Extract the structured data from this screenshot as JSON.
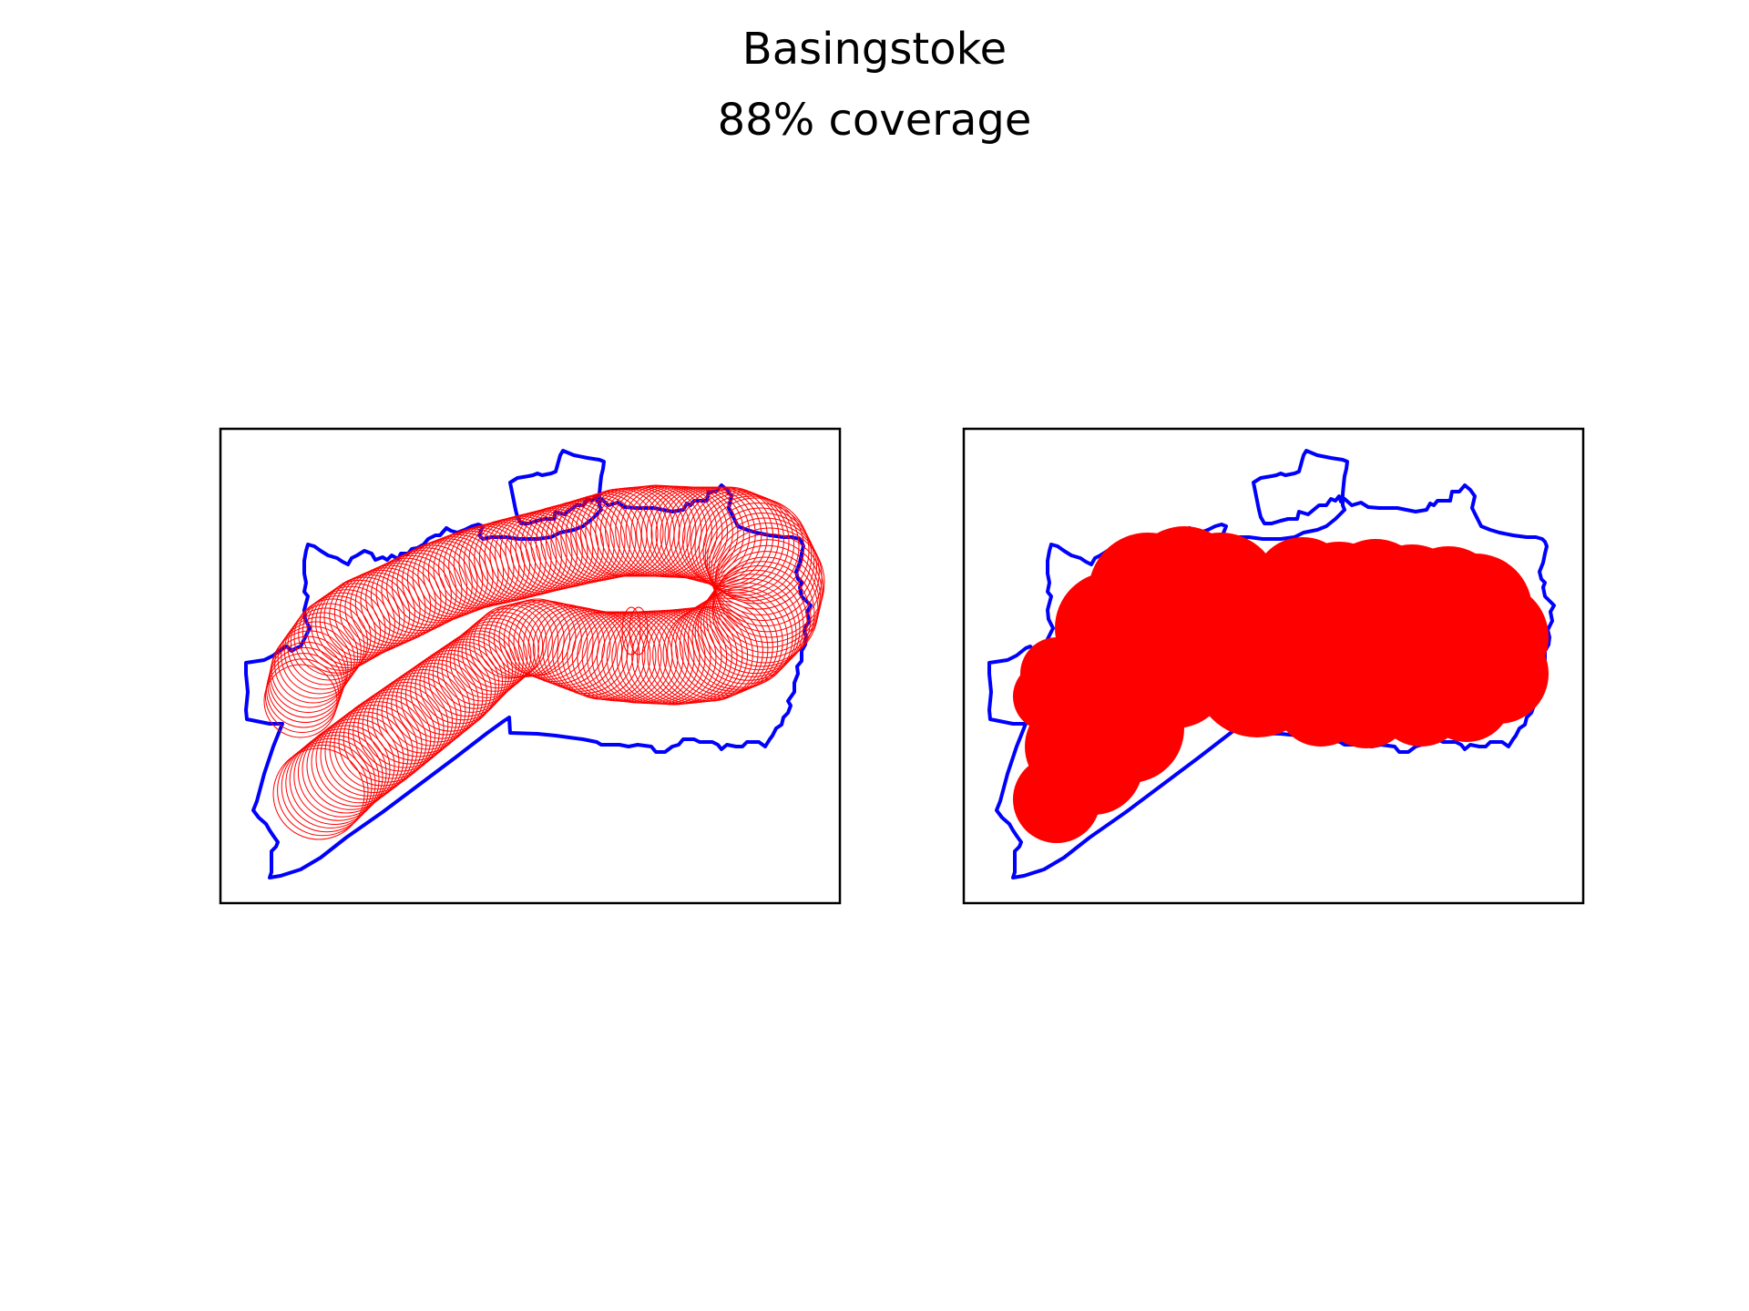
{
  "figure": {
    "title": "Basingstoke",
    "subtitle": "88% coverage"
  },
  "colors": {
    "boundary": "#0000ff",
    "coverage": "#ff0000",
    "frame": "#000000",
    "background": "#ffffff"
  },
  "panels": [
    {
      "name": "coverage-circles-outline",
      "style": "outline"
    },
    {
      "name": "coverage-circles-filled",
      "style": "filled"
    }
  ]
}
